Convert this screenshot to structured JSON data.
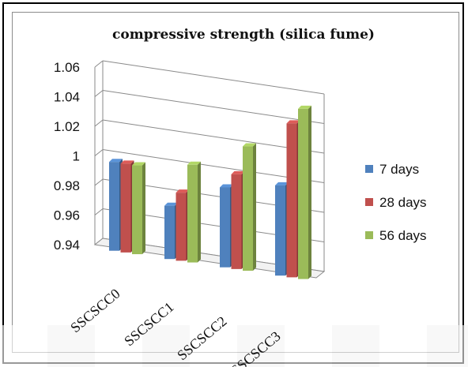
{
  "chart_data": {
    "type": "bar",
    "title": "compressive strength (silica fume)",
    "xlabel": "",
    "ylabel": "",
    "categories": [
      "SSCSCC0",
      "SSCSCC1",
      "SSCSCC2",
      "SSCSCC3"
    ],
    "series": [
      {
        "name": "7 days",
        "values": [
          1.0,
          0.976,
          0.994,
          1.001
        ],
        "color": "#4f81bd"
      },
      {
        "name": "28 days",
        "values": [
          1.0,
          0.986,
          1.004,
          1.044
        ],
        "color": "#c0504d"
      },
      {
        "name": "56 days",
        "values": [
          1.0,
          1.006,
          1.024,
          1.055
        ],
        "color": "#9bbb59"
      }
    ],
    "ylim": [
      0.94,
      1.06
    ],
    "yticks": [
      "0.94",
      "0.96",
      "0.98",
      "1",
      "1.02",
      "1.04",
      "1.06"
    ],
    "grid": true,
    "legend_position": "right",
    "style": "3d-clustered-column"
  }
}
